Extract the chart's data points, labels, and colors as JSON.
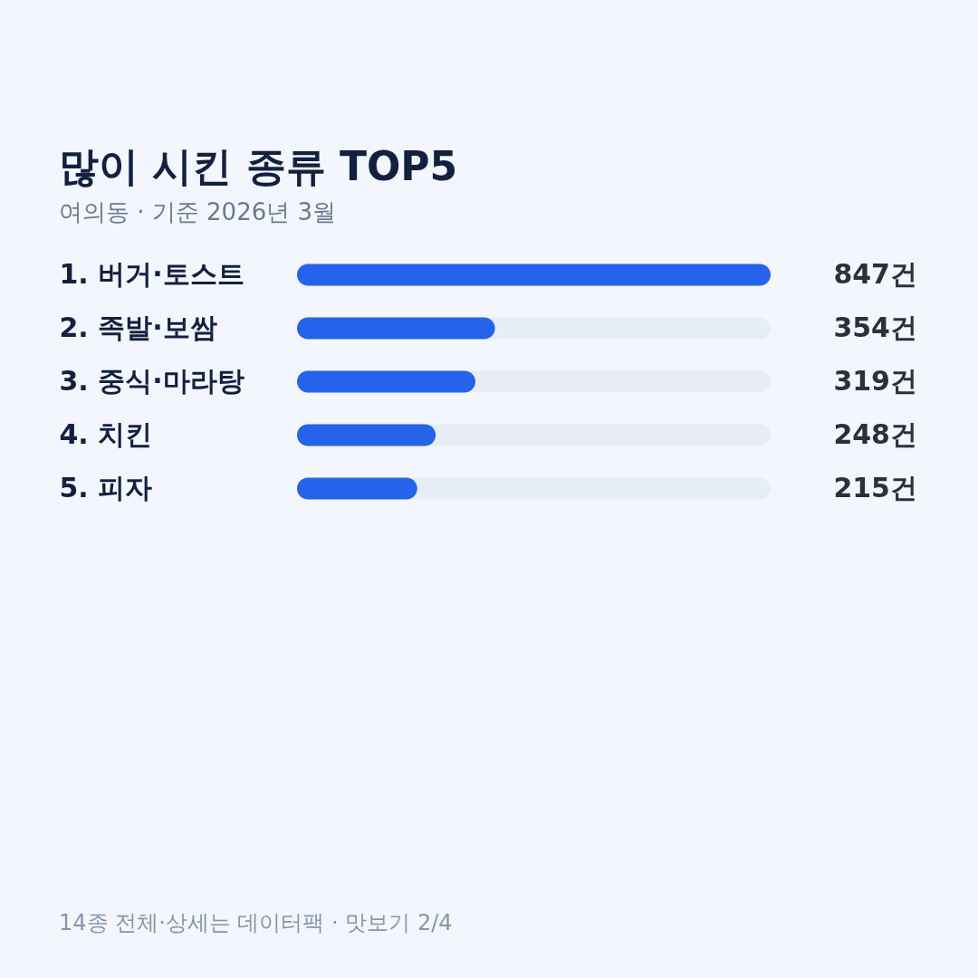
{
  "chart_data": {
    "type": "bar",
    "orientation": "horizontal",
    "title": "많이 시킨 종류 TOP5",
    "subtitle": "여의동 · 기준 2026년 3월",
    "categories": [
      "1. 버거·토스트",
      "2. 족발·보쌈",
      "3. 중식·마라탕",
      "4. 치킨",
      "5. 피자"
    ],
    "values": [
      847,
      354,
      319,
      248,
      215
    ],
    "color": "#2563eb",
    "value_labels": [
      "847건",
      "354건",
      "319건",
      "248건",
      "215건"
    ],
    "xlim": [
      0,
      847
    ],
    "tick_labels": "y",
    "bands": [
      {
        "axis": "x",
        "from": 0,
        "to": 847,
        "color": "#e7edf7"
      }
    ],
    "annotations": [
      "14종 전체·상세는 데이터팩 · 맛보기 2/4"
    ]
  }
}
